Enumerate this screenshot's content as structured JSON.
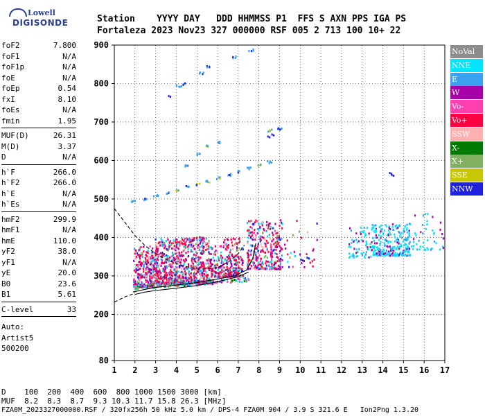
{
  "logo": {
    "line1": "Lowell",
    "line2": "DIGISONDE"
  },
  "header": {
    "row1": "Station    YYYY DAY   DDD HHMMSS P1  FFS S AXN PPS IGA PS",
    "row2": "Fortaleza 2023 Nov23 327 000000 RSF 005 2 713 100 10+ 22"
  },
  "params": {
    "group1": [
      {
        "name": "foF2",
        "value": "7.800"
      },
      {
        "name": "foF1",
        "value": "N/A"
      },
      {
        "name": "foF1p",
        "value": "N/A"
      },
      {
        "name": "foE",
        "value": "N/A"
      },
      {
        "name": "foEp",
        "value": "0.54"
      },
      {
        "name": "fxI",
        "value": "8.10"
      },
      {
        "name": "foEs",
        "value": "N/A"
      },
      {
        "name": "fmin",
        "value": "1.95"
      }
    ],
    "group2": [
      {
        "name": "MUF(D)",
        "value": "26.31"
      },
      {
        "name": "M(D)",
        "value": "3.37"
      },
      {
        "name": "D",
        "value": "N/A"
      }
    ],
    "group3": [
      {
        "name": "h`F",
        "value": "266.0"
      },
      {
        "name": "h`F2",
        "value": "266.0"
      },
      {
        "name": "h`E",
        "value": "N/A"
      },
      {
        "name": "h`Es",
        "value": "N/A"
      }
    ],
    "group4": [
      {
        "name": "hmF2",
        "value": "299.9"
      },
      {
        "name": "hmF1",
        "value": "N/A"
      },
      {
        "name": "hmE",
        "value": "110.0"
      },
      {
        "name": "yF2",
        "value": "38.0"
      },
      {
        "name": "yF1",
        "value": "N/A"
      },
      {
        "name": "yE",
        "value": "20.0"
      },
      {
        "name": "B0",
        "value": "23.6"
      },
      {
        "name": "B1",
        "value": "5.61"
      }
    ],
    "group5": [
      {
        "name": "C-level",
        "value": "33"
      }
    ],
    "footer_lines": [
      "Auto:",
      "Artist5",
      "500200"
    ]
  },
  "legend": [
    {
      "label": "NoVal",
      "color": "#8c8c8c"
    },
    {
      "label": "NNE",
      "color": "#00e5ff"
    },
    {
      "label": "E",
      "color": "#3aa0f0"
    },
    {
      "label": "W",
      "color": "#a800a8"
    },
    {
      "label": "Vo-",
      "color": "#ff3fb0"
    },
    {
      "label": "Vo+",
      "color": "#ff0040"
    },
    {
      "label": "SSW",
      "color": "#ffb0b0"
    },
    {
      "label": "X-",
      "color": "#007a00"
    },
    {
      "label": "X+",
      "color": "#80b060"
    },
    {
      "label": "SSE",
      "color": "#c8c800"
    },
    {
      "label": "NNW",
      "color": "#2020e0"
    }
  ],
  "bottom": {
    "d_row": "D    100  200  400  600  800 1000 1500 3000 [km]",
    "muf_row": "MUF  8.2  8.3  8.7  9.3 10.3 11.7 15.8 26.3 [MHz]",
    "file_row": "FZA0M_2023327000000.RSF / 320fx256h 50 kHz 5.0 km / DPS-4 FZA0M 904 / 3.9 S 321.6 E   Ion2Png 1.3.20"
  },
  "chart_data": {
    "type": "scatter",
    "xlim": [
      1,
      17
    ],
    "ylim": [
      80,
      900
    ],
    "x_ticks": [
      1,
      2,
      3,
      4,
      5,
      6,
      7,
      8,
      9,
      10,
      11,
      12,
      13,
      14,
      15,
      16,
      17
    ],
    "y_ticks": [
      80,
      200,
      300,
      400,
      500,
      600,
      700,
      800,
      900
    ],
    "grid": true,
    "legend_position": "right",
    "traces": [
      {
        "name": "second-hop",
        "color": "#3aa0f0",
        "x": [
          1.9,
          2.5,
          3.0,
          3.5,
          4.0,
          4.5,
          5.0,
          5.5,
          6.0,
          6.5,
          7.0,
          7.5,
          8.0,
          8.5
        ],
        "y": [
          495,
          502,
          510,
          518,
          526,
          533,
          540,
          548,
          556,
          565,
          574,
          582,
          590,
          598
        ]
      },
      {
        "name": "third-hop",
        "color": "#3aa0f0",
        "x": [
          4.5,
          5.0,
          5.5,
          6.0
        ],
        "y": [
          588,
          620,
          640,
          650
        ]
      },
      {
        "name": "upper-trace",
        "color": "#3aa0f0",
        "x": [
          4.1,
          4.3,
          5.2,
          5.5,
          6.8,
          7.6,
          8.5,
          9.0
        ],
        "y": [
          795,
          800,
          830,
          845,
          870,
          890,
          680,
          685
        ]
      }
    ],
    "curves": [
      {
        "name": "profile-dashed",
        "style": "dashed",
        "x": [
          1.0,
          1.5,
          2.0,
          2.5,
          3.0,
          3.5,
          4.0,
          4.5,
          5.0,
          5.5,
          6.0,
          6.5,
          7.0,
          7.3
        ],
        "y": [
          475,
          440,
          405,
          378,
          358,
          343,
          332,
          324,
          318,
          318,
          322,
          335,
          358,
          380
        ]
      },
      {
        "name": "profile-lower-dashed",
        "style": "dashed",
        "x": [
          1.0,
          1.5,
          2.0
        ],
        "y": [
          232,
          245,
          255
        ]
      },
      {
        "name": "trace-outer",
        "style": "solid",
        "x": [
          1.9,
          2.5,
          3.0,
          4.0,
          5.0,
          6.0,
          6.8,
          7.4,
          7.7,
          7.85
        ],
        "y": [
          258,
          265,
          270,
          276,
          283,
          292,
          300,
          315,
          345,
          385
        ]
      },
      {
        "name": "trace-inner",
        "style": "solid",
        "x": [
          2.0,
          2.5,
          3.0,
          4.0,
          5.0,
          6.0,
          7.0,
          7.5
        ],
        "y": [
          252,
          258,
          262,
          268,
          275,
          285,
          298,
          310
        ]
      }
    ]
  }
}
